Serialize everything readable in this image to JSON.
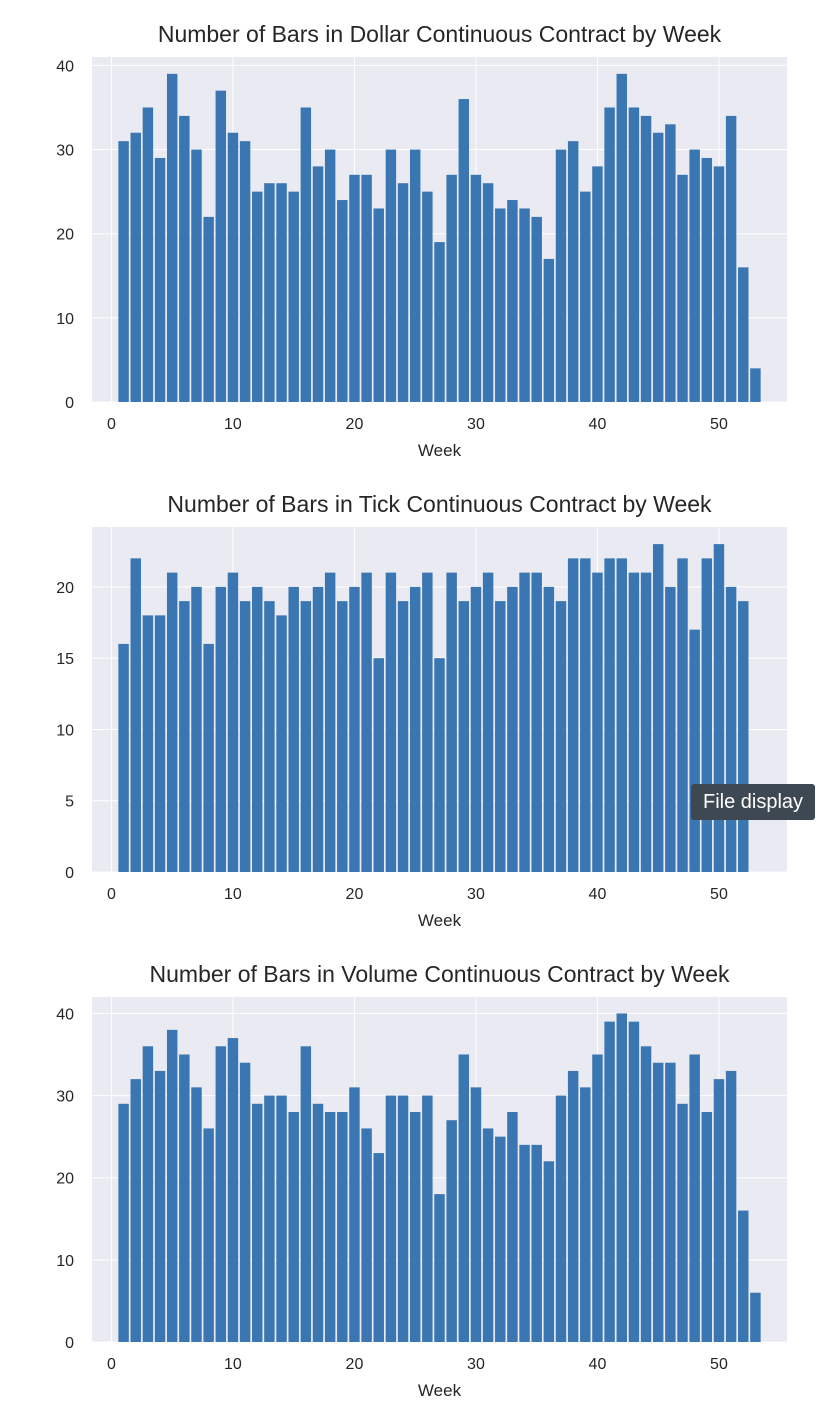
{
  "tooltip": {
    "label": "File display"
  },
  "colors": {
    "bar": "#3a76b1",
    "plot_background": "#eaeaf2",
    "grid": "#ffffff",
    "text": "#262626"
  },
  "chart_data": [
    {
      "type": "bar",
      "title": "Number of Bars in Dollar Continuous Contract by Week",
      "xlabel": "Week",
      "ylabel": "",
      "x": [
        1,
        2,
        3,
        4,
        5,
        6,
        7,
        8,
        9,
        10,
        11,
        12,
        13,
        14,
        15,
        16,
        17,
        18,
        19,
        20,
        21,
        22,
        23,
        24,
        25,
        26,
        27,
        28,
        29,
        30,
        31,
        32,
        33,
        34,
        35,
        36,
        37,
        38,
        39,
        40,
        41,
        42,
        43,
        44,
        45,
        46,
        47,
        48,
        49,
        50,
        51,
        52,
        53
      ],
      "values": [
        31,
        32,
        35,
        29,
        39,
        34,
        30,
        22,
        37,
        32,
        31,
        25,
        26,
        26,
        25,
        35,
        28,
        30,
        24,
        27,
        27,
        23,
        30,
        26,
        30,
        25,
        19,
        27,
        36,
        27,
        26,
        23,
        24,
        23,
        22,
        17,
        30,
        31,
        25,
        28,
        35,
        39,
        35,
        34,
        32,
        33,
        27,
        30,
        29,
        28,
        34,
        16,
        4
      ],
      "xlim": [
        -1.6,
        55.6
      ],
      "ylim": [
        0,
        41
      ],
      "xticks": [
        0,
        10,
        20,
        30,
        40,
        50
      ],
      "yticks": [
        0,
        10,
        20,
        30,
        40
      ]
    },
    {
      "type": "bar",
      "title": "Number of Bars in Tick Continuous Contract by Week",
      "xlabel": "Week",
      "ylabel": "",
      "x": [
        1,
        2,
        3,
        4,
        5,
        6,
        7,
        8,
        9,
        10,
        11,
        12,
        13,
        14,
        15,
        16,
        17,
        18,
        19,
        20,
        21,
        22,
        23,
        24,
        25,
        26,
        27,
        28,
        29,
        30,
        31,
        32,
        33,
        34,
        35,
        36,
        37,
        38,
        39,
        40,
        41,
        42,
        43,
        44,
        45,
        46,
        47,
        48,
        49,
        50,
        51,
        52,
        53
      ],
      "values": [
        16,
        22,
        18,
        18,
        21,
        19,
        20,
        16,
        20,
        21,
        19,
        20,
        19,
        18,
        20,
        19,
        20,
        21,
        19,
        20,
        21,
        15,
        21,
        19,
        20,
        21,
        15,
        21,
        19,
        20,
        21,
        19,
        20,
        21,
        21,
        20,
        19,
        22,
        22,
        21,
        22,
        22,
        21,
        21,
        23,
        20,
        22,
        17,
        22,
        23,
        20,
        19,
        0
      ],
      "xlim": [
        -1.6,
        55.6
      ],
      "ylim": [
        0,
        24.2
      ],
      "xticks": [
        0,
        10,
        20,
        30,
        40,
        50
      ],
      "yticks": [
        0,
        5,
        10,
        15,
        20
      ]
    },
    {
      "type": "bar",
      "title": "Number of Bars in Volume Continuous Contract by Week",
      "xlabel": "Week",
      "ylabel": "",
      "x": [
        1,
        2,
        3,
        4,
        5,
        6,
        7,
        8,
        9,
        10,
        11,
        12,
        13,
        14,
        15,
        16,
        17,
        18,
        19,
        20,
        21,
        22,
        23,
        24,
        25,
        26,
        27,
        28,
        29,
        30,
        31,
        32,
        33,
        34,
        35,
        36,
        37,
        38,
        39,
        40,
        41,
        42,
        43,
        44,
        45,
        46,
        47,
        48,
        49,
        50,
        51,
        52,
        53
      ],
      "values": [
        29,
        32,
        36,
        33,
        38,
        35,
        31,
        26,
        36,
        37,
        34,
        29,
        30,
        30,
        28,
        36,
        29,
        28,
        28,
        31,
        26,
        23,
        30,
        30,
        28,
        30,
        18,
        27,
        35,
        31,
        26,
        25,
        28,
        24,
        24,
        22,
        30,
        33,
        31,
        35,
        39,
        40,
        39,
        36,
        34,
        34,
        29,
        35,
        28,
        32,
        33,
        16,
        6
      ],
      "xlim": [
        -1.6,
        55.6
      ],
      "ylim": [
        0,
        42
      ],
      "xticks": [
        0,
        10,
        20,
        30,
        40,
        50
      ],
      "yticks": [
        0,
        10,
        20,
        30,
        40
      ]
    }
  ]
}
